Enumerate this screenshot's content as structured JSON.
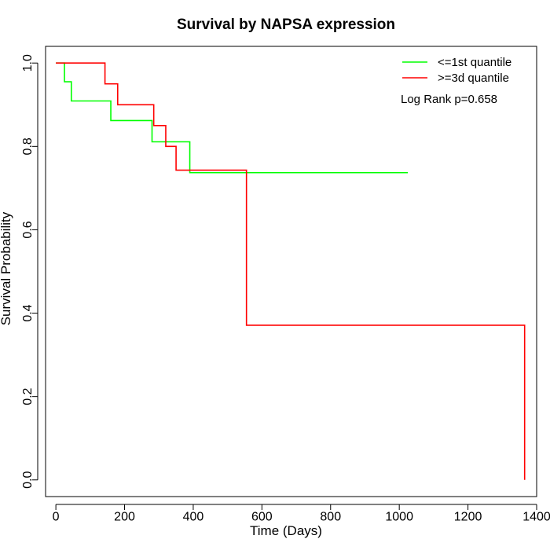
{
  "chart_data": {
    "type": "line",
    "title": "Survival by NAPSA expression",
    "xlabel": "Time (Days)",
    "ylabel": "Survival Probability",
    "xlim": [
      -30,
      1400
    ],
    "ylim": [
      -0.04,
      1.04
    ],
    "xticks": [
      0,
      200,
      400,
      600,
      800,
      1000,
      1200,
      1400
    ],
    "yticks": [
      0.0,
      0.2,
      0.4,
      0.6,
      0.8,
      1.0
    ],
    "xtick_labels": [
      "0",
      "200",
      "400",
      "600",
      "800",
      "1000",
      "1200",
      "1400"
    ],
    "ytick_labels": [
      "0.0",
      "0.2",
      "0.4",
      "0.6",
      "0.8",
      "1.0"
    ],
    "grid": false,
    "legend_position": "top-right",
    "annotation": "Log Rank p=0.658",
    "series": [
      {
        "name": "<=1st quantile",
        "color": "#00ff00",
        "x": [
          0,
          25,
          45,
          160,
          280,
          390,
          1025
        ],
        "y": [
          1.0,
          0.955,
          0.909,
          0.862,
          0.811,
          0.737,
          0.737
        ]
      },
      {
        "name": ">=3d quantile",
        "color": "#ff0000",
        "x": [
          0,
          143,
          180,
          285,
          320,
          350,
          555,
          1365,
          1365
        ],
        "y": [
          1.0,
          0.95,
          0.9,
          0.85,
          0.8,
          0.743,
          0.371,
          0.371,
          0.0
        ]
      }
    ]
  }
}
